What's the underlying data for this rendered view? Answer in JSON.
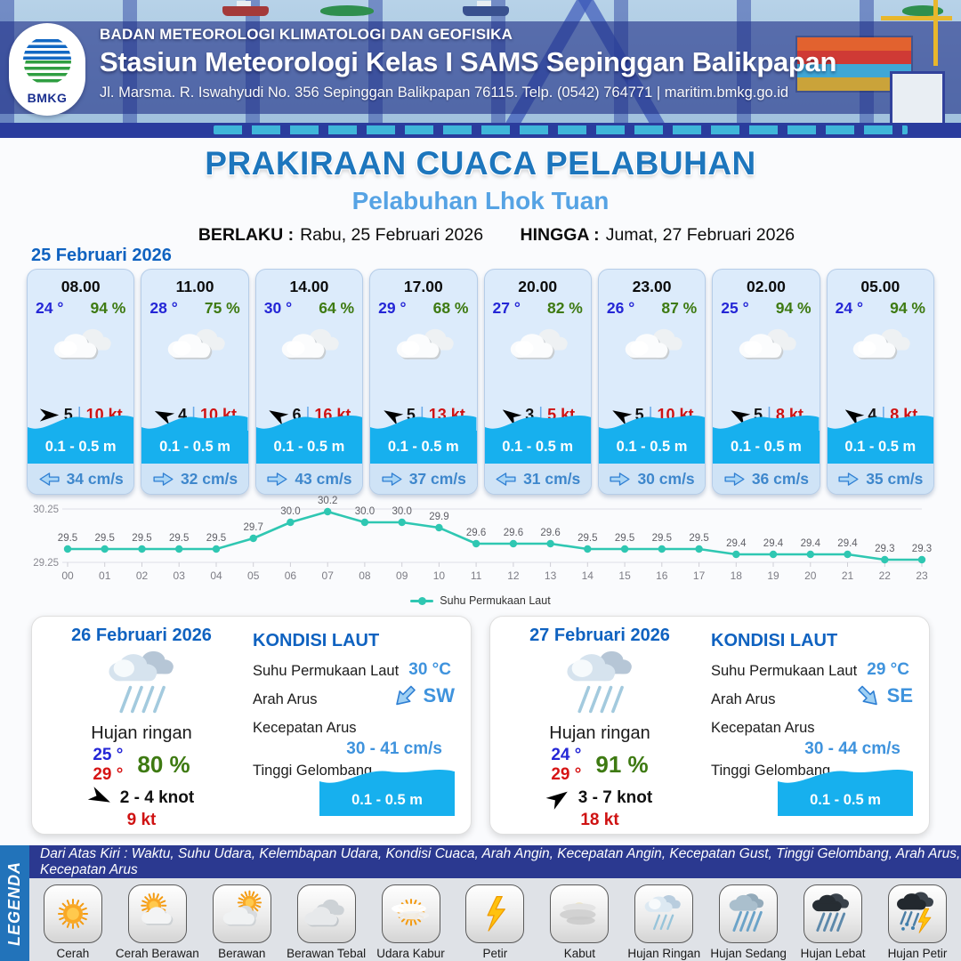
{
  "header": {
    "org": "BADAN METEOROLOGI KLIMATOLOGI DAN GEOFISIKA",
    "station": "Stasiun Meteorologi Kelas I SAMS Sepinggan Balikpapan",
    "address": "Jl. Marsma. R. Iswahyudi No. 356 Sepinggan Balikpapan 76115. Telp. (0542) 764771 | maritim.bmkg.go.id",
    "logo_text": "BMKG"
  },
  "title": {
    "main": "PRAKIRAAN CUACA PELABUHAN",
    "subtitle": "Pelabuhan Lhok Tuan",
    "valid_label": "BERLAKU :",
    "valid_value": "Rabu, 25 Februari 2026",
    "until_label": "HINGGA :",
    "until_value": "Jumat, 27 Februari 2026"
  },
  "forecast": {
    "date": "25 Februari 2026",
    "cards": [
      {
        "time": "08.00",
        "temp": "24 °",
        "humidity": "94 %",
        "weather_icon": "berawan-icon",
        "wind_speed": "5",
        "wind_sep": "|",
        "gust": "10 kt",
        "wind_rotation": 0,
        "wave": "0.1 - 0.5 m",
        "current": "34 cm/s",
        "current_rotation": 180
      },
      {
        "time": "11.00",
        "temp": "28 °",
        "humidity": "75 %",
        "weather_icon": "berawan-icon",
        "wind_speed": "4",
        "wind_sep": "|",
        "gust": "10 kt",
        "wind_rotation": -155,
        "wave": "0.1 - 0.5 m",
        "current": "32 cm/s",
        "current_rotation": 0
      },
      {
        "time": "14.00",
        "temp": "30 °",
        "humidity": "64 %",
        "weather_icon": "berawan-icon",
        "wind_speed": "6",
        "wind_sep": "|",
        "gust": "16 kt",
        "wind_rotation": -150,
        "wave": "0.1 - 0.5 m",
        "current": "43 cm/s",
        "current_rotation": 0
      },
      {
        "time": "17.00",
        "temp": "29 °",
        "humidity": "68 %",
        "weather_icon": "berawan-icon",
        "wind_speed": "5",
        "wind_sep": "|",
        "gust": "13 kt",
        "wind_rotation": -150,
        "wave": "0.1 - 0.5 m",
        "current": "37 cm/s",
        "current_rotation": 0
      },
      {
        "time": "20.00",
        "temp": "27 °",
        "humidity": "82 %",
        "weather_icon": "berawan-icon",
        "wind_speed": "3",
        "wind_sep": "|",
        "gust": "5 kt",
        "wind_rotation": -145,
        "wave": "0.1 - 0.5 m",
        "current": "31 cm/s",
        "current_rotation": 180
      },
      {
        "time": "23.00",
        "temp": "26 °",
        "humidity": "87 %",
        "weather_icon": "berawan-icon",
        "wind_speed": "5",
        "wind_sep": "|",
        "gust": "10 kt",
        "wind_rotation": -150,
        "wave": "0.1 - 0.5 m",
        "current": "30 cm/s",
        "current_rotation": 0
      },
      {
        "time": "02.00",
        "temp": "25 °",
        "humidity": "94 %",
        "weather_icon": "berawan-icon",
        "wind_speed": "5",
        "wind_sep": "|",
        "gust": "8 kt",
        "wind_rotation": -150,
        "wave": "0.1 - 0.5 m",
        "current": "36 cm/s",
        "current_rotation": 0
      },
      {
        "time": "05.00",
        "temp": "24 °",
        "humidity": "94 %",
        "weather_icon": "berawan-icon",
        "wind_speed": "4",
        "wind_sep": "|",
        "gust": "8 kt",
        "wind_rotation": -145,
        "wave": "0.1 - 0.5 m",
        "current": "35 cm/s",
        "current_rotation": 0
      }
    ]
  },
  "chart_data": {
    "type": "line",
    "x": [
      "00",
      "01",
      "02",
      "03",
      "04",
      "05",
      "06",
      "07",
      "08",
      "09",
      "10",
      "11",
      "12",
      "13",
      "14",
      "15",
      "16",
      "17",
      "18",
      "19",
      "20",
      "21",
      "22",
      "23"
    ],
    "series": [
      {
        "name": "Suhu Permukaan Laut",
        "color": "#2fc7b2",
        "values": [
          29.5,
          29.5,
          29.5,
          29.5,
          29.5,
          29.7,
          30.0,
          30.2,
          30.0,
          30.0,
          29.9,
          29.6,
          29.6,
          29.6,
          29.5,
          29.5,
          29.5,
          29.5,
          29.4,
          29.4,
          29.4,
          29.4,
          29.3,
          29.3
        ]
      }
    ],
    "ylim": [
      29.25,
      30.25
    ],
    "yticks": [
      29.25,
      30.25
    ],
    "grid": true,
    "legend_position": "bottom"
  },
  "days": [
    {
      "date": "26 Februari 2026",
      "condition": "Hujan ringan",
      "weather_icon": "hujan-ringan-big-icon",
      "temp_min": "25 °",
      "temp_max": "29 °",
      "humidity": "80 %",
      "wind_range": "2 - 4 knot",
      "wind_rotation": 25,
      "gust": "9 kt",
      "sea": {
        "heading": "KONDISI LAUT",
        "sst_label": "Suhu Permukaan Laut",
        "sst": "30 °C",
        "current_dir_label": "Arah Arus",
        "current_dir": "SW",
        "current_dir_rotation": 135,
        "current_speed_label": "Kecepatan Arus",
        "current_speed": "30 - 41 cm/s",
        "wave_label": "Tinggi Gelombang",
        "wave": "0.1 - 0.5 m"
      }
    },
    {
      "date": "27 Februari 2026",
      "condition": "Hujan ringan",
      "weather_icon": "hujan-ringan-big-icon",
      "temp_min": "24 °",
      "temp_max": "29 °",
      "humidity": "91 %",
      "wind_range": "3 - 7 knot",
      "wind_rotation": -35,
      "gust": "18 kt",
      "sea": {
        "heading": "KONDISI LAUT",
        "sst_label": "Suhu Permukaan Laut",
        "sst": "29 °C",
        "current_dir_label": "Arah Arus",
        "current_dir": "SE",
        "current_dir_rotation": 45,
        "current_speed_label": "Kecepatan Arus",
        "current_speed": "30 - 44 cm/s",
        "wave_label": "Tinggi Gelombang",
        "wave": "0.1 - 0.5 m"
      }
    }
  ],
  "legend": {
    "title": "LEGENDA",
    "header": "Dari Atas Kiri : Waktu, Suhu Udara, Kelembapan Udara, Kondisi Cuaca, Arah Angin, Kecepatan Angin, Kecepatan Gust, Tinggi Gelombang, Arah Arus, Kecepatan Arus",
    "items": [
      {
        "label": "Cerah",
        "icon": "cerah-icon"
      },
      {
        "label": "Cerah Berawan",
        "icon": "cerah-berawan-icon"
      },
      {
        "label": "Berawan",
        "icon": "berawan-legend-icon"
      },
      {
        "label": "Berawan Tebal",
        "icon": "berawan-tebal-icon"
      },
      {
        "label": "Udara Kabur",
        "icon": "udara-kabur-icon"
      },
      {
        "label": "Petir",
        "icon": "petir-icon"
      },
      {
        "label": "Kabut",
        "icon": "kabut-icon"
      },
      {
        "label": "Hujan Ringan",
        "icon": "hujan-ringan-icon"
      },
      {
        "label": "Hujan Sedang",
        "icon": "hujan-sedang-icon"
      },
      {
        "label": "Hujan Lebat",
        "icon": "hujan-lebat-icon"
      },
      {
        "label": "Hujan Petir",
        "icon": "hujan-petir-icon"
      }
    ]
  }
}
